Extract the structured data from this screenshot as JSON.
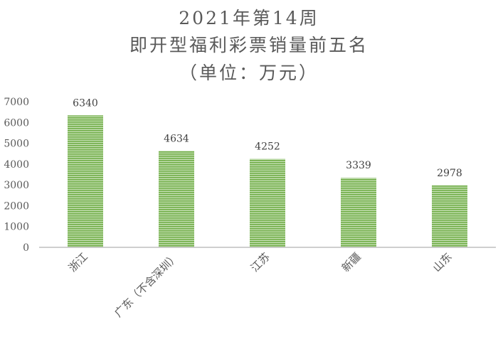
{
  "chart_data": {
    "type": "bar",
    "title": [
      "2021年第14周",
      "即开型福利彩票销量前五名",
      "（单位：万元）"
    ],
    "categories": [
      "浙江",
      "广东（不含深圳）",
      "江苏",
      "新疆",
      "山东"
    ],
    "values": [
      6340,
      4634,
      4252,
      3339,
      2978
    ],
    "data_labels": [
      "6340",
      "4634",
      "4252",
      "3339",
      "2978"
    ],
    "yticks": [
      "0",
      "1000",
      "2000",
      "3000",
      "4000",
      "5000",
      "6000",
      "7000"
    ],
    "ylim": [
      0,
      7000
    ],
    "xlabel": "",
    "ylabel": "",
    "grid": false,
    "legend": "none",
    "bar_color": "#70ad47",
    "bar_stripe_color": "#c5e0b4"
  }
}
